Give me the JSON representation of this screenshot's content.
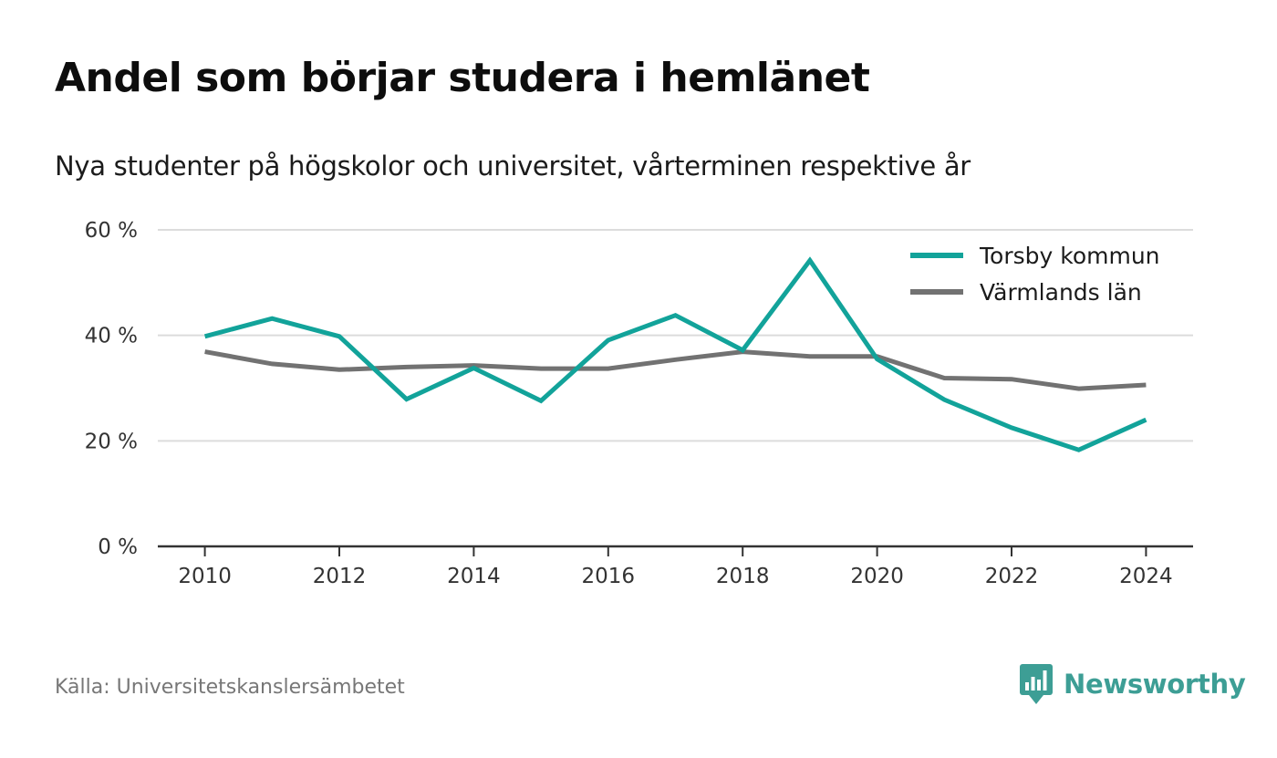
{
  "title": "Andel som börjar studera i hemlänet",
  "subtitle": "Nya studenter på högskolor och universitet, vårterminen respektive år",
  "source": "Källa: Universitetskanslersämbetet",
  "brand": {
    "name": "Newsworthy",
    "icon": "newsworthy-logo-icon",
    "color": "#3d9e95"
  },
  "colors": {
    "torsby": "#12a39a",
    "varmland": "#727272",
    "grid": "#dcdcdc",
    "axis": "#333333"
  },
  "chart_data": {
    "type": "line",
    "title": "Andel som börjar studera i hemlänet",
    "subtitle": "Nya studenter på högskolor och universitet, vårterminen respektive år",
    "xlabel": "",
    "ylabel": "",
    "x": [
      2010,
      2011,
      2012,
      2013,
      2014,
      2015,
      2016,
      2017,
      2018,
      2019,
      2020,
      2021,
      2022,
      2023,
      2024
    ],
    "xlim": [
      2009.3,
      2024.7
    ],
    "ylim": [
      0,
      60
    ],
    "x_ticks": [
      "2010",
      "2012",
      "2014",
      "2016",
      "2018",
      "2020",
      "2022",
      "2024"
    ],
    "y_ticks": [
      "0 %",
      "20 %",
      "40 %",
      "60 %"
    ],
    "grid": true,
    "legend_position": "top-right",
    "series": [
      {
        "name": "Torsby kommun",
        "color": "#12a39a",
        "values": [
          39.8,
          43.2,
          39.8,
          27.9,
          33.8,
          27.6,
          39.1,
          43.8,
          37.2,
          54.2,
          35.5,
          27.8,
          22.5,
          18.3,
          24.0
        ]
      },
      {
        "name": "Värmlands län",
        "color": "#727272",
        "values": [
          36.9,
          34.6,
          33.5,
          34.0,
          34.3,
          33.7,
          33.7,
          35.4,
          36.9,
          36.0,
          36.0,
          31.9,
          31.7,
          29.9,
          30.6
        ]
      }
    ]
  }
}
